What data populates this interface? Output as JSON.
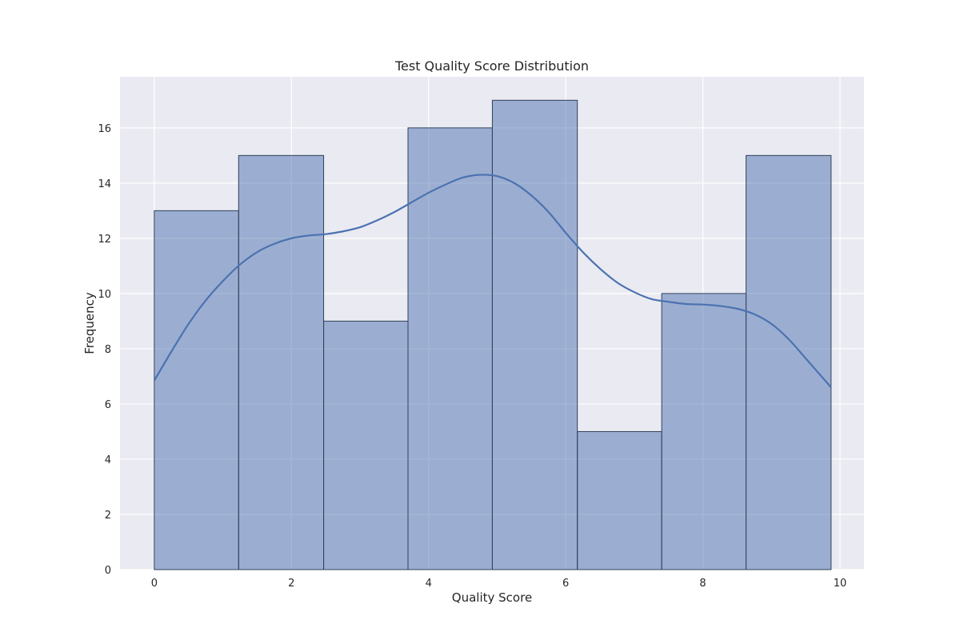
{
  "chart_data": {
    "type": "bar",
    "title": "Test Quality Score Distribution",
    "xlabel": "Quality Score",
    "ylabel": "Frequency",
    "xlim": [
      -0.5,
      10.35
    ],
    "ylim": [
      0,
      17.85
    ],
    "x_ticks": [
      0,
      2,
      4,
      6,
      8,
      10
    ],
    "y_ticks": [
      0,
      2,
      4,
      6,
      8,
      10,
      12,
      14,
      16
    ],
    "grid": true,
    "bins": [
      {
        "x0": 0.0,
        "x1": 1.23,
        "count": 13
      },
      {
        "x0": 1.23,
        "x1": 2.47,
        "count": 15
      },
      {
        "x0": 2.47,
        "x1": 3.7,
        "count": 9
      },
      {
        "x0": 3.7,
        "x1": 4.93,
        "count": 16
      },
      {
        "x0": 4.93,
        "x1": 6.17,
        "count": 17
      },
      {
        "x0": 6.17,
        "x1": 7.4,
        "count": 5
      },
      {
        "x0": 7.4,
        "x1": 8.63,
        "count": 10
      },
      {
        "x0": 8.63,
        "x1": 9.87,
        "count": 15
      }
    ],
    "kde": {
      "x": [
        0.0,
        0.25,
        0.5,
        0.75,
        1.0,
        1.25,
        1.5,
        1.75,
        2.0,
        2.25,
        2.5,
        2.75,
        3.0,
        3.25,
        3.5,
        3.75,
        4.0,
        4.25,
        4.5,
        4.75,
        5.0,
        5.25,
        5.5,
        5.75,
        6.0,
        6.25,
        6.5,
        6.75,
        7.0,
        7.25,
        7.5,
        7.75,
        8.0,
        8.25,
        8.5,
        8.75,
        9.0,
        9.25,
        9.5,
        9.87
      ],
      "y": [
        6.85,
        7.9,
        8.9,
        9.75,
        10.45,
        11.05,
        11.5,
        11.8,
        12.0,
        12.1,
        12.15,
        12.25,
        12.4,
        12.65,
        12.95,
        13.3,
        13.65,
        13.95,
        14.2,
        14.3,
        14.25,
        14.0,
        13.55,
        12.95,
        12.2,
        11.5,
        10.9,
        10.4,
        10.05,
        9.8,
        9.7,
        9.62,
        9.6,
        9.55,
        9.45,
        9.25,
        8.9,
        8.35,
        7.65,
        6.6
      ]
    },
    "colors": {
      "plot_background": "#eaeaf2",
      "grid": "#ffffff",
      "bar_fill": "#4c72b0",
      "bar_fill_opacity": 0.5,
      "bar_edge": "#30405a",
      "kde_line": "#4c72b0"
    }
  }
}
